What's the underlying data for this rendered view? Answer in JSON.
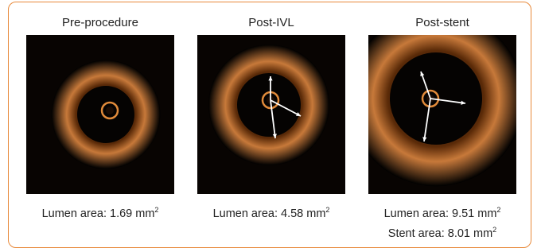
{
  "panels": [
    {
      "title": "Pre-procedure",
      "captions": [
        {
          "text": "Lumen area: 1.69 mm",
          "superscript": "2"
        }
      ]
    },
    {
      "title": "Post-IVL",
      "captions": [
        {
          "text": "Lumen area: 4.58 mm",
          "superscript": "2"
        }
      ]
    },
    {
      "title": "Post-stent",
      "captions": [
        {
          "text": "Lumen area: 9.51 mm",
          "superscript": "2"
        },
        {
          "text": "Stent area: 8.01 mm",
          "superscript": "2"
        }
      ]
    }
  ]
}
